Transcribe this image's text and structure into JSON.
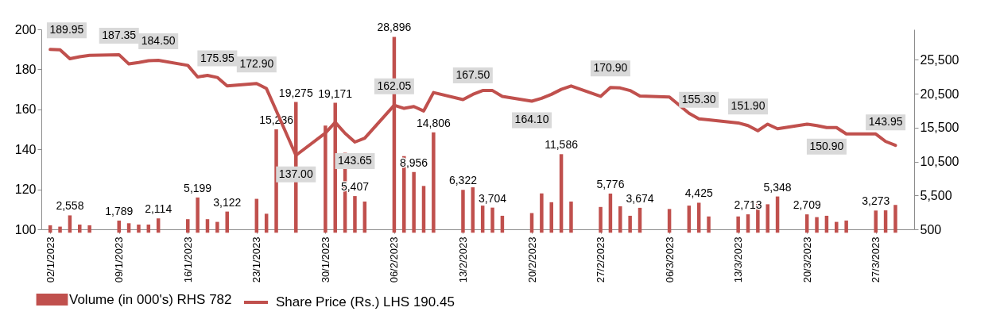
{
  "chart_data": {
    "type": "bar",
    "legend": "bottom",
    "x": [
      "2023-01-02",
      "2023-01-03",
      "2023-01-04",
      "2023-01-05",
      "2023-01-06",
      "2023-01-09",
      "2023-01-10",
      "2023-01-11",
      "2023-01-12",
      "2023-01-13",
      "2023-01-16",
      "2023-01-17",
      "2023-01-18",
      "2023-01-19",
      "2023-01-20",
      "2023-01-23",
      "2023-01-24",
      "2023-01-25",
      "2023-01-27",
      "2023-01-30",
      "2023-01-31",
      "2023-02-01",
      "2023-02-02",
      "2023-02-03",
      "2023-02-06",
      "2023-02-07",
      "2023-02-08",
      "2023-02-09",
      "2023-02-10",
      "2023-02-13",
      "2023-02-14",
      "2023-02-15",
      "2023-02-16",
      "2023-02-17",
      "2023-02-20",
      "2023-02-21",
      "2023-02-22",
      "2023-02-23",
      "2023-02-24",
      "2023-02-27",
      "2023-02-28",
      "2023-03-01",
      "2023-03-02",
      "2023-03-03",
      "2023-03-06",
      "2023-03-08",
      "2023-03-09",
      "2023-03-10",
      "2023-03-13",
      "2023-03-14",
      "2023-03-15",
      "2023-03-16",
      "2023-03-17",
      "2023-03-20",
      "2023-03-21",
      "2023-03-22",
      "2023-03-23",
      "2023-03-24",
      "2023-03-27",
      "2023-03-28",
      "2023-03-29"
    ],
    "series": [
      {
        "name": "Volume (in 000's) RHS  782",
        "axis": "y2",
        "color": "#c0504d",
        "values": [
          1100,
          900,
          2558,
          1200,
          1100,
          1789,
          1400,
          1200,
          1200,
          2114,
          2000,
          5199,
          2000,
          1600,
          3122,
          5000,
          2800,
          15236,
          19275,
          15800,
          19171,
          11800,
          5407,
          4600,
          28896,
          11300,
          8956,
          6900,
          14806,
          6322,
          6700,
          4000,
          3704,
          2500,
          2900,
          5800,
          4500,
          11586,
          4600,
          3800,
          5776,
          3900,
          2500,
          3674,
          3500,
          4000,
          4425,
          2400,
          2400,
          2713,
          4300,
          4200,
          5348,
          2709,
          2300,
          2500,
          1600,
          1800,
          3273,
          3300,
          4100
        ],
        "value_labels": [
          null,
          null,
          "2,558",
          null,
          null,
          "1,789",
          null,
          null,
          null,
          "2,114",
          null,
          "5,199",
          null,
          null,
          "3,122",
          null,
          null,
          "15,236",
          "19,275",
          null,
          "19,171",
          null,
          "5,407",
          null,
          "28,896",
          null,
          "8,956",
          null,
          "14,806",
          "6,322",
          null,
          null,
          "3,704",
          null,
          null,
          null,
          null,
          "11,586",
          null,
          null,
          "5,776",
          null,
          null,
          "3,674",
          null,
          null,
          "4,425",
          null,
          null,
          "2,713",
          null,
          null,
          "5,348",
          "2,709",
          null,
          null,
          null,
          null,
          "3,273",
          null,
          null
        ]
      },
      {
        "name": "Share Price (Rs.) LHS  190.45",
        "type": "line",
        "color": "#c0504d",
        "values": [
          189.95,
          189.8,
          185.3,
          186.3,
          187.0,
          187.35,
          182.7,
          183.4,
          184.3,
          184.5,
          182.0,
          176.2,
          177.0,
          175.95,
          171.7,
          172.9,
          170.4,
          159.3,
          137.0,
          148.2,
          153.5,
          148.0,
          143.65,
          145.6,
          162.05,
          160.5,
          161.4,
          159.2,
          168.4,
          164.9,
          167.5,
          169.4,
          169.4,
          166.5,
          164.1,
          165.5,
          167.5,
          170.0,
          171.7,
          166.5,
          170.9,
          170.7,
          169.4,
          166.7,
          166.2,
          158.0,
          155.3,
          154.8,
          153.2,
          151.9,
          149.3,
          152.6,
          150.3,
          152.6,
          151.9,
          150.9,
          150.9,
          147.7,
          147.7,
          143.95,
          142.0
        ],
        "value_labels": [
          "189.95",
          null,
          null,
          null,
          null,
          "187.35",
          null,
          null,
          null,
          "184.50",
          null,
          null,
          null,
          "175.95",
          null,
          "172.90",
          null,
          null,
          "137.00",
          null,
          null,
          null,
          "143.65",
          null,
          "162.05",
          null,
          null,
          null,
          null,
          null,
          "167.50",
          null,
          null,
          null,
          "164.10",
          null,
          null,
          null,
          null,
          null,
          "170.90",
          null,
          null,
          null,
          null,
          null,
          "155.30",
          null,
          null,
          "151.90",
          null,
          null,
          null,
          null,
          null,
          "150.90",
          null,
          null,
          null,
          "143.95",
          null
        ]
      }
    ],
    "xlim": [
      "2023-01-01T12:00",
      "2023-03-30T12:00"
    ],
    "xticks": [
      {
        "value": "2023-01-02",
        "label": "02/1/2023"
      },
      {
        "value": "2023-01-09",
        "label": "09/1/2023"
      },
      {
        "value": "2023-01-16",
        "label": "16/1/2023"
      },
      {
        "value": "2023-01-23",
        "label": "23/1/2023"
      },
      {
        "value": "2023-01-30",
        "label": "30/1/2023"
      },
      {
        "value": "2023-02-06",
        "label": "06/2/2023"
      },
      {
        "value": "2023-02-13",
        "label": "13/2/2023"
      },
      {
        "value": "2023-02-20",
        "label": "20/2/2023"
      },
      {
        "value": "2023-02-27",
        "label": "27/2/2023"
      },
      {
        "value": "2023-03-06",
        "label": "06/3/2023"
      },
      {
        "value": "2023-03-13",
        "label": "13/3/2023"
      },
      {
        "value": "2023-03-20",
        "label": "20/3/2023"
      },
      {
        "value": "2023-03-27",
        "label": "27/3/2023"
      }
    ],
    "ylim": [
      100,
      200
    ],
    "yticks": [
      100,
      120,
      140,
      160,
      180,
      200
    ],
    "y2lim": [
      500,
      30000
    ],
    "y2ticks": [
      500,
      {
        "value": 5500,
        "label": "5,500"
      },
      {
        "value": 10500,
        "label": "10,500"
      },
      {
        "value": 15500,
        "label": "15,500"
      },
      {
        "value": 20500,
        "label": "20,500"
      },
      {
        "value": 25500,
        "label": "25,500"
      }
    ]
  }
}
